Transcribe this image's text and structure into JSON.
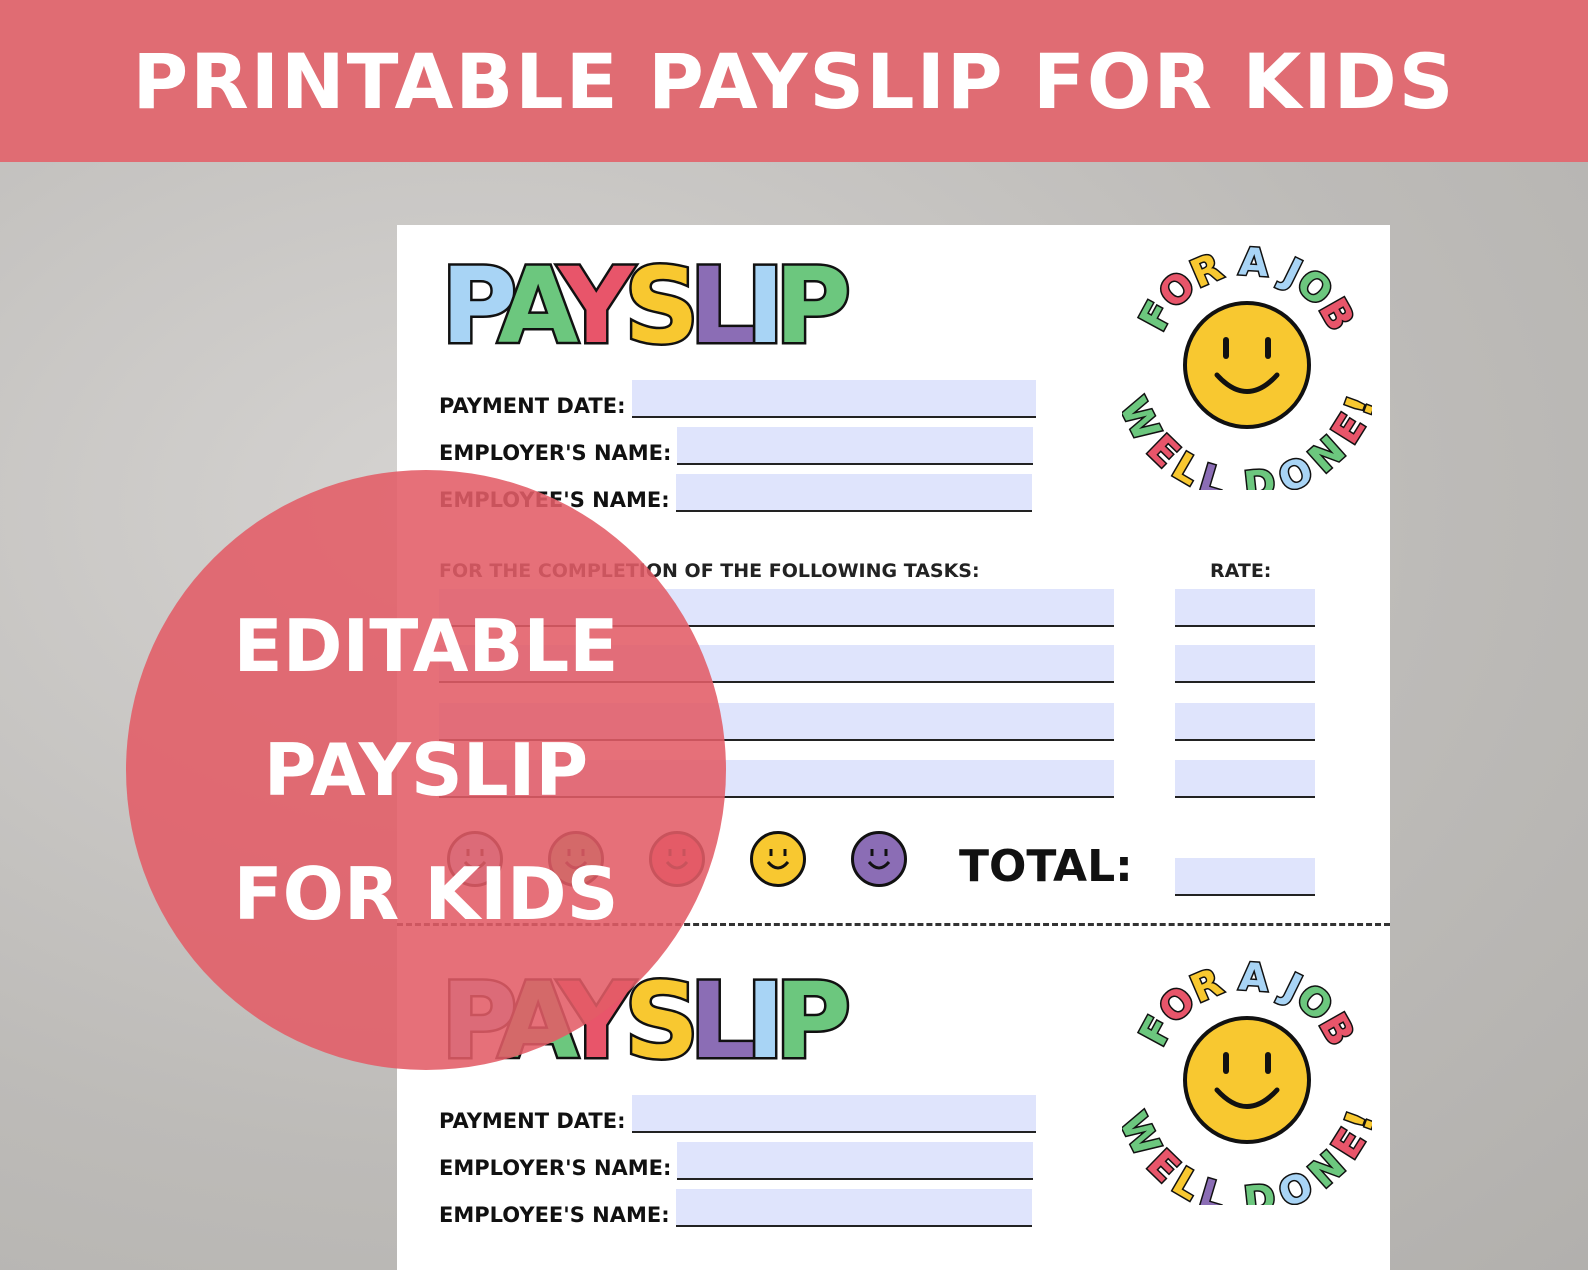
{
  "banner": {
    "title": "PRINTABLE PAYSLIP FOR KIDS"
  },
  "payslip": {
    "logo": "PAYSLIP",
    "logo_colors": [
      "#a8d4f5",
      "#6cc77e",
      "#e8556a",
      "#f8c830",
      "#8b6db5",
      "#a8d4f5",
      "#6cc77e"
    ],
    "fields": [
      "PAYMENT DATE:",
      "EMPLOYER'S NAME:",
      "EMPLOYEE'S NAME:"
    ],
    "tasks_heading": "FOR THE COMPLETION OF THE FOLLOWING TASKS:",
    "rate_heading": "RATE:",
    "total_label": "TOTAL:",
    "badge_top": "FOR A JOB",
    "badge_bottom": "WELL DONE!",
    "smiley_colors": [
      "#a8d4f5",
      "#6cc77e",
      "#e8556a",
      "#f8c830",
      "#8b6db5"
    ]
  },
  "overlay": {
    "lines": [
      "EDITABLE",
      "PAYSLIP",
      "FOR KIDS"
    ]
  },
  "colors": {
    "banner": "#e06c73",
    "field_fill": "#dfe4fc",
    "smiley": "#f8c830"
  }
}
